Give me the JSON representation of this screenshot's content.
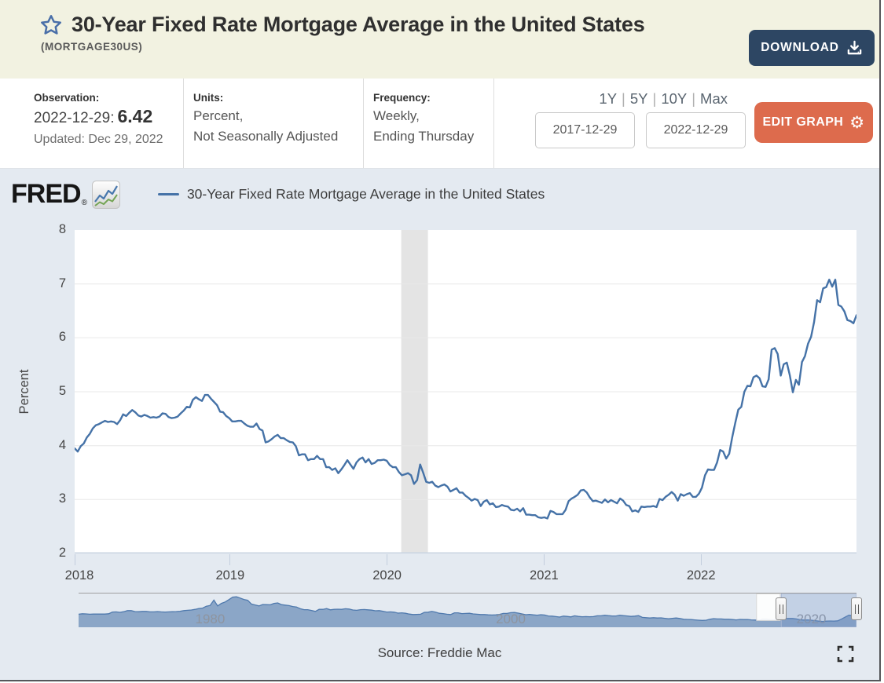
{
  "header": {
    "title": "30-Year Fixed Rate Mortgage Average in the United States",
    "series_id": "(MORTGAGE30US)",
    "download_label": "DOWNLOAD"
  },
  "meta": {
    "observation": {
      "label": "Observation:",
      "date": "2022-12-29:",
      "value": "6.42",
      "updated": "Updated: Dec 29, 2022"
    },
    "units": {
      "label": "Units:",
      "line1": "Percent,",
      "line2": "Not Seasonally Adjusted"
    },
    "frequency": {
      "label": "Frequency:",
      "line1": "Weekly,",
      "line2": "Ending Thursday"
    }
  },
  "range_controls": {
    "presets": [
      "1Y",
      "5Y",
      "10Y",
      "Max"
    ],
    "start_date": "2017-12-29",
    "end_date": "2022-12-29",
    "edit_graph_label": "EDIT GRAPH"
  },
  "graph": {
    "brand": "FRED",
    "legend_label": "30-Year Fixed Rate Mortgage Average in the United States",
    "source": "Source: Freddie Mac"
  },
  "colors": {
    "line": "#4572a7",
    "recession": "#e4e4e4",
    "grid": "#e8e8e8",
    "chart_bg": "#e4eaf1",
    "header_bg": "#f2f2e1",
    "navy_button": "#2d4663",
    "orange_button": "#dd6b4d",
    "nav_fill": "#8ba6c7",
    "nav_stroke": "#4f79ad",
    "nav_mask": "rgba(113,144,199,0.28)"
  },
  "chart_data": {
    "type": "line",
    "title": "30-Year Fixed Rate Mortgage Average in the United States",
    "ylabel": "Percent",
    "ylim": [
      2,
      8
    ],
    "yticks": [
      2,
      3,
      4,
      5,
      6,
      7,
      8
    ],
    "xticks": [
      2018,
      2019,
      2020,
      2021,
      2022
    ],
    "x_domain": [
      2018.01,
      2022.99
    ],
    "grid": true,
    "legend_position": "top",
    "frequency": "weekly",
    "recession_band": [
      2020.09,
      2020.26
    ],
    "series": [
      {
        "name": "30-Year Fixed Rate Mortgage Average in the United States",
        "color": "#4572a7",
        "first_date": "2018-01-04",
        "last_date": "2022-12-29",
        "values": [
          3.95,
          3.89,
          3.99,
          4.04,
          4.15,
          4.22,
          4.32,
          4.38,
          4.4,
          4.43,
          4.46,
          4.44,
          4.45,
          4.44,
          4.4,
          4.47,
          4.58,
          4.55,
          4.61,
          4.66,
          4.62,
          4.56,
          4.54,
          4.57,
          4.55,
          4.52,
          4.53,
          4.52,
          4.54,
          4.6,
          4.59,
          4.53,
          4.51,
          4.52,
          4.54,
          4.6,
          4.65,
          4.72,
          4.71,
          4.85,
          4.9,
          4.86,
          4.83,
          4.94,
          4.94,
          4.87,
          4.81,
          4.75,
          4.63,
          4.62,
          4.55,
          4.51,
          4.45,
          4.45,
          4.46,
          4.46,
          4.41,
          4.37,
          4.35,
          4.35,
          4.41,
          4.31,
          4.28,
          4.06,
          4.08,
          4.12,
          4.17,
          4.2,
          4.14,
          4.14,
          4.1,
          4.07,
          4.06,
          3.99,
          3.82,
          3.84,
          3.84,
          3.73,
          3.75,
          3.75,
          3.81,
          3.75,
          3.75,
          3.6,
          3.6,
          3.55,
          3.58,
          3.49,
          3.56,
          3.64,
          3.73,
          3.65,
          3.57,
          3.69,
          3.75,
          3.78,
          3.69,
          3.75,
          3.66,
          3.68,
          3.73,
          3.73,
          3.74,
          3.72,
          3.64,
          3.6,
          3.6,
          3.51,
          3.45,
          3.47,
          3.49,
          3.45,
          3.29,
          3.36,
          3.65,
          3.5,
          3.33,
          3.31,
          3.33,
          3.26,
          3.23,
          3.26,
          3.28,
          3.24,
          3.15,
          3.18,
          3.21,
          3.13,
          3.13,
          3.07,
          3.03,
          2.98,
          3.01,
          2.99,
          2.88,
          2.96,
          2.99,
          2.91,
          2.93,
          2.86,
          2.87,
          2.9,
          2.88,
          2.87,
          2.81,
          2.8,
          2.83,
          2.78,
          2.84,
          2.72,
          2.72,
          2.71,
          2.71,
          2.67,
          2.66,
          2.67,
          2.65,
          2.79,
          2.77,
          2.73,
          2.73,
          2.73,
          2.81,
          2.97,
          3.02,
          3.05,
          3.09,
          3.17,
          3.18,
          3.13,
          3.04,
          2.97,
          2.98,
          2.96,
          2.94,
          3.0,
          2.95,
          2.99,
          2.96,
          2.93,
          3.02,
          2.98,
          2.9,
          2.88,
          2.78,
          2.8,
          2.77,
          2.87,
          2.86,
          2.87,
          2.87,
          2.88,
          2.86,
          3.01,
          2.99,
          3.05,
          3.09,
          3.14,
          3.09,
          2.98,
          3.1,
          3.07,
          3.1,
          3.12,
          3.05,
          3.05,
          3.11,
          3.22,
          3.45,
          3.56,
          3.55,
          3.55,
          3.69,
          3.92,
          3.89,
          3.76,
          3.85,
          4.16,
          4.42,
          4.67,
          4.72,
          5.0,
          5.11,
          5.1,
          5.27,
          5.3,
          5.25,
          5.1,
          5.09,
          5.23,
          5.78,
          5.81,
          5.7,
          5.3,
          5.51,
          5.54,
          5.3,
          4.99,
          5.22,
          5.13,
          5.55,
          5.66,
          5.89,
          6.02,
          6.29,
          6.7,
          6.66,
          6.92,
          6.94,
          7.08,
          6.95,
          7.08,
          6.61,
          6.58,
          6.49,
          6.33,
          6.31,
          6.27,
          6.42
        ]
      }
    ],
    "navigator": {
      "type": "area",
      "x_start": 1971.25,
      "x_step": 0.25,
      "x_end": 2023.0,
      "ymax": 19,
      "tick_labels": [
        "1980",
        "2000",
        "2020"
      ],
      "tick_positions": [
        1980,
        2000,
        2020
      ],
      "selected_range": [
        2018.0,
        2023.0
      ],
      "values": [
        7.3,
        7.6,
        7.5,
        7.3,
        7.4,
        7.4,
        7.4,
        7.4,
        7.6,
        8.7,
        8.8,
        8.5,
        8.9,
        9.6,
        9.6,
        9.0,
        8.9,
        9.1,
        9.1,
        8.8,
        8.8,
        9.0,
        8.8,
        8.7,
        8.8,
        8.9,
        9.0,
        9.2,
        9.6,
        9.8,
        10.0,
        10.4,
        10.9,
        11.2,
        12.4,
        12.9,
        16.3,
        12.6,
        14.2,
        15.1,
        16.6,
        18.2,
        18.4,
        17.6,
        16.7,
        16.2,
        13.8,
        13.2,
        12.6,
        13.5,
        13.4,
        13.3,
        14.2,
        14.5,
        13.4,
        13.1,
        12.8,
        12.2,
        11.9,
        10.8,
        10.2,
        10.2,
        9.7,
        9.1,
        10.4,
        10.4,
        10.9,
        10.1,
        10.4,
        10.5,
        10.4,
        10.8,
        10.6,
        10.0,
        9.8,
        10.2,
        10.3,
        10.1,
        9.9,
        9.5,
        9.6,
        9.2,
        8.7,
        8.8,
        8.6,
        8.0,
        8.2,
        7.9,
        7.4,
        7.1,
        7.2,
        7.3,
        8.5,
        8.6,
        9.1,
        8.6,
        7.9,
        7.7,
        7.3,
        7.1,
        8.2,
        8.2,
        7.7,
        7.8,
        7.9,
        7.5,
        7.3,
        7.1,
        7.1,
        6.9,
        6.8,
        6.9,
        7.2,
        7.8,
        7.8,
        8.3,
        8.4,
        8.0,
        7.5,
        7.0,
        7.2,
        6.9,
        6.7,
        7.0,
        6.8,
        6.2,
        6.1,
        5.8,
        5.5,
        6.1,
        5.9,
        5.6,
        6.3,
        5.9,
        5.7,
        5.8,
        5.7,
        5.8,
        6.3,
        6.3,
        6.7,
        6.4,
        6.2,
        6.2,
        6.7,
        6.4,
        6.2,
        5.9,
        6.1,
        6.4,
        5.3,
        5.1,
        4.9,
        5.1,
        4.9,
        5.0,
        4.7,
        4.4,
        4.7,
        4.9,
        4.6,
        4.1,
        4.0,
        3.9,
        3.7,
        3.5,
        3.35,
        3.5,
        4.1,
        4.5,
        4.3,
        4.3,
        4.1,
        4.1,
        3.9,
        3.7,
        4.0,
        3.9,
        3.95,
        3.7,
        3.6,
        3.4,
        4.2,
        4.2,
        3.9,
        3.8,
        3.95,
        4.4,
        4.55,
        4.6,
        4.6,
        4.3,
        3.8,
        3.6,
        3.7,
        3.5,
        3.2,
        2.9,
        2.7,
        2.9,
        3.0,
        2.9,
        3.1,
        4.2,
        5.5,
        6.7,
        6.4
      ]
    }
  }
}
